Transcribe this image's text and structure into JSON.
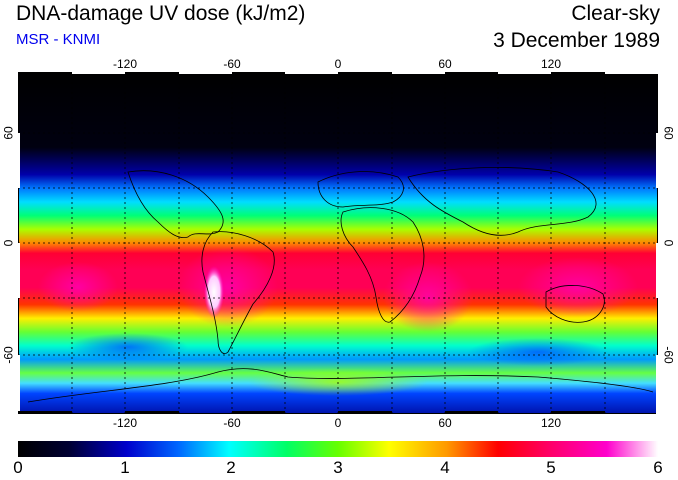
{
  "header": {
    "title": "DNA-damage UV dose (kJ/m2)",
    "subtitle": "MSR - KNMI",
    "condition": "Clear-sky",
    "date": "3 December 1989"
  },
  "map": {
    "lon_ticks": [
      "-120",
      "-60",
      "0",
      "60",
      "120"
    ],
    "lat_ticks_left": [
      "60",
      "0",
      "-60"
    ],
    "lat_ticks_right": [
      "60",
      "0",
      "-60"
    ]
  },
  "colorbar": {
    "labels": [
      "0",
      "1",
      "2",
      "3",
      "4",
      "5",
      "6"
    ],
    "min": 0,
    "max": 6
  },
  "colors": {
    "scale": [
      "#000000",
      "#000033",
      "#0000cc",
      "#0066ff",
      "#00ffff",
      "#00ff66",
      "#66ff00",
      "#ffff00",
      "#ff9900",
      "#ff0000",
      "#ff0066",
      "#ff00cc",
      "#ffffff"
    ]
  }
}
